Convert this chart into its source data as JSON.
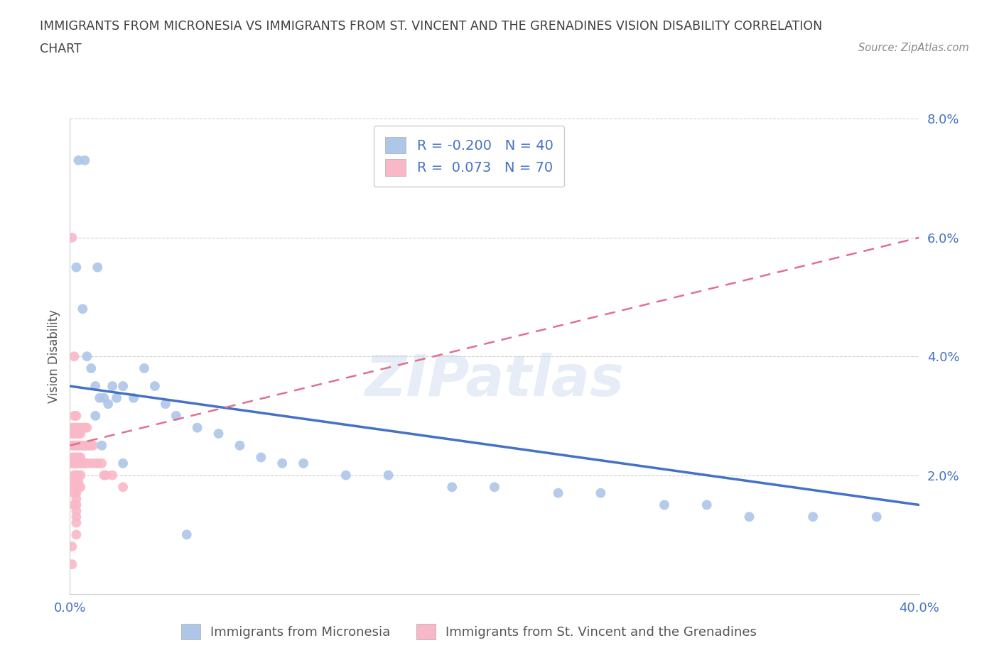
{
  "title_line1": "IMMIGRANTS FROM MICRONESIA VS IMMIGRANTS FROM ST. VINCENT AND THE GRENADINES VISION DISABILITY CORRELATION",
  "title_line2": "CHART",
  "source": "Source: ZipAtlas.com",
  "ylabel": "Vision Disability",
  "xlim": [
    0,
    0.4
  ],
  "ylim": [
    0,
    0.08
  ],
  "series1_name": "Immigrants from Micronesia",
  "series1_color": "#aec6e8",
  "series1_R": -0.2,
  "series1_N": 40,
  "series2_name": "Immigrants from St. Vincent and the Grenadines",
  "series2_color": "#f9b8c8",
  "series2_R": 0.073,
  "series2_N": 70,
  "line1_color": "#4472c4",
  "line2_color": "#e07090",
  "line1_start_y": 0.035,
  "line1_end_y": 0.015,
  "line2_start_x": 0.0,
  "line2_start_y": 0.025,
  "line2_end_y": 0.06,
  "watermark_text": "ZIPatlas",
  "background_color": "#ffffff",
  "grid_color": "#d0d0d0",
  "title_color": "#404040",
  "axis_label_color": "#4472c4",
  "series1_x": [
    0.004,
    0.007,
    0.013,
    0.003,
    0.006,
    0.008,
    0.01,
    0.012,
    0.014,
    0.016,
    0.018,
    0.02,
    0.022,
    0.025,
    0.03,
    0.035,
    0.04,
    0.045,
    0.05,
    0.06,
    0.07,
    0.08,
    0.09,
    0.1,
    0.11,
    0.13,
    0.15,
    0.18,
    0.2,
    0.23,
    0.25,
    0.28,
    0.3,
    0.32,
    0.35,
    0.38,
    0.012,
    0.015,
    0.025,
    0.055
  ],
  "series1_y": [
    0.073,
    0.073,
    0.055,
    0.055,
    0.048,
    0.04,
    0.038,
    0.035,
    0.033,
    0.033,
    0.032,
    0.035,
    0.033,
    0.035,
    0.033,
    0.038,
    0.035,
    0.032,
    0.03,
    0.028,
    0.027,
    0.025,
    0.023,
    0.022,
    0.022,
    0.02,
    0.02,
    0.018,
    0.018,
    0.017,
    0.017,
    0.015,
    0.015,
    0.013,
    0.013,
    0.013,
    0.03,
    0.025,
    0.022,
    0.01
  ],
  "series2_x": [
    0.001,
    0.001,
    0.001,
    0.001,
    0.001,
    0.001,
    0.002,
    0.002,
    0.002,
    0.002,
    0.002,
    0.002,
    0.002,
    0.002,
    0.002,
    0.002,
    0.002,
    0.003,
    0.003,
    0.003,
    0.003,
    0.003,
    0.003,
    0.003,
    0.003,
    0.003,
    0.003,
    0.003,
    0.003,
    0.003,
    0.003,
    0.003,
    0.003,
    0.004,
    0.004,
    0.004,
    0.004,
    0.004,
    0.004,
    0.004,
    0.005,
    0.005,
    0.005,
    0.005,
    0.005,
    0.005,
    0.005,
    0.006,
    0.006,
    0.006,
    0.007,
    0.007,
    0.007,
    0.008,
    0.008,
    0.008,
    0.009,
    0.01,
    0.01,
    0.011,
    0.012,
    0.013,
    0.015,
    0.016,
    0.017,
    0.02,
    0.025,
    0.002,
    0.001,
    0.001
  ],
  "series2_y": [
    0.06,
    0.028,
    0.027,
    0.025,
    0.023,
    0.022,
    0.03,
    0.028,
    0.027,
    0.025,
    0.023,
    0.022,
    0.02,
    0.019,
    0.018,
    0.017,
    0.015,
    0.03,
    0.028,
    0.027,
    0.025,
    0.023,
    0.022,
    0.02,
    0.019,
    0.018,
    0.017,
    0.016,
    0.015,
    0.014,
    0.013,
    0.012,
    0.01,
    0.028,
    0.027,
    0.025,
    0.023,
    0.022,
    0.02,
    0.019,
    0.028,
    0.027,
    0.025,
    0.023,
    0.022,
    0.02,
    0.018,
    0.028,
    0.025,
    0.022,
    0.028,
    0.025,
    0.022,
    0.028,
    0.025,
    0.022,
    0.025,
    0.025,
    0.022,
    0.025,
    0.022,
    0.022,
    0.022,
    0.02,
    0.02,
    0.02,
    0.018,
    0.04,
    0.008,
    0.005
  ]
}
